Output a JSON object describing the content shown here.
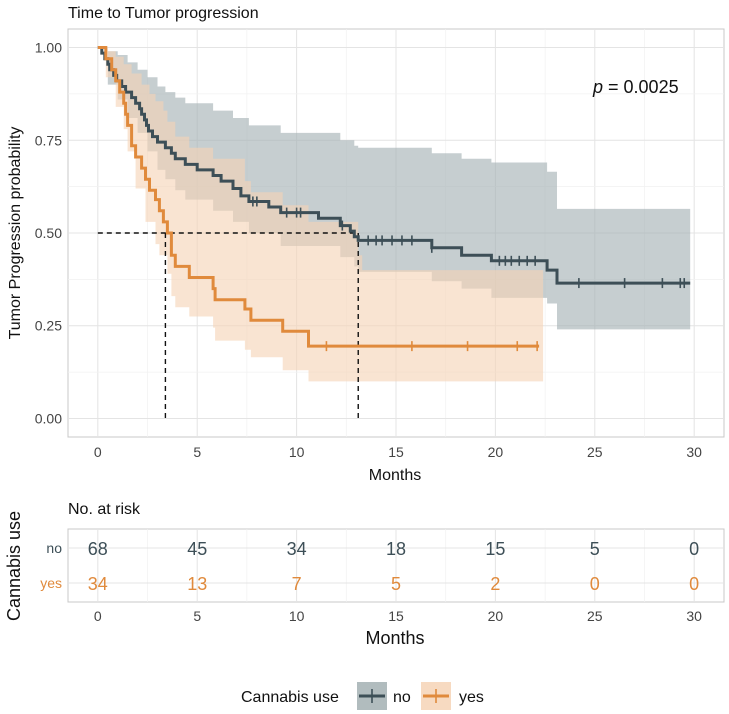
{
  "chart_data": [
    {
      "type": "line",
      "subtype": "kaplan-meier",
      "title": "Time to Tumor progression",
      "xlabel": "Months",
      "ylabel": "Tumor Progression probability",
      "xlim": [
        -1.5,
        31.5
      ],
      "ylim": [
        -0.05,
        1.05
      ],
      "x_ticks": [
        "0",
        "5",
        "10",
        "15",
        "20",
        "25",
        "30"
      ],
      "y_ticks": [
        "0.00",
        "0.25",
        "0.50",
        "0.75",
        "1.00"
      ],
      "grid": true,
      "annotation": {
        "p_label": "p",
        "p_value": " = 0.0025"
      },
      "median_lines": [
        3.4,
        13.1
      ],
      "series": [
        {
          "name": "no",
          "color": "#3d4f57",
          "ci_color": "#a3b0b3",
          "steps": [
            [
              0,
              1.0
            ],
            [
              0.2,
              0.985
            ],
            [
              0.35,
              0.97
            ],
            [
              0.5,
              0.955
            ],
            [
              0.6,
              0.94
            ],
            [
              0.8,
              0.925
            ],
            [
              0.95,
              0.91
            ],
            [
              1.2,
              0.895
            ],
            [
              1.4,
              0.88
            ],
            [
              1.7,
              0.865
            ],
            [
              1.9,
              0.85
            ],
            [
              2.1,
              0.835
            ],
            [
              2.2,
              0.82
            ],
            [
              2.35,
              0.805
            ],
            [
              2.45,
              0.79
            ],
            [
              2.55,
              0.775
            ],
            [
              2.75,
              0.76
            ],
            [
              3.0,
              0.745
            ],
            [
              3.4,
              0.73
            ],
            [
              3.7,
              0.715
            ],
            [
              3.9,
              0.7
            ],
            [
              4.4,
              0.685
            ],
            [
              5.0,
              0.67
            ],
            [
              5.8,
              0.655
            ],
            [
              6.2,
              0.64
            ],
            [
              6.8,
              0.62
            ],
            [
              7.2,
              0.6
            ],
            [
              7.6,
              0.585
            ],
            [
              8.6,
              0.57
            ],
            [
              9.2,
              0.555
            ],
            [
              11.1,
              0.54
            ],
            [
              12.2,
              0.52
            ],
            [
              12.7,
              0.505
            ],
            [
              12.9,
              0.49
            ],
            [
              13.1,
              0.48
            ],
            [
              16.8,
              0.46
            ],
            [
              18.3,
              0.44
            ],
            [
              19.8,
              0.425
            ],
            [
              22.6,
              0.4
            ],
            [
              23.1,
              0.365
            ],
            [
              29.8,
              0.365
            ]
          ],
          "ci_upper": [
            [
              0,
              1.0
            ],
            [
              0.5,
              0.99
            ],
            [
              1.0,
              0.98
            ],
            [
              1.5,
              0.96
            ],
            [
              2.0,
              0.94
            ],
            [
              2.5,
              0.92
            ],
            [
              3.0,
              0.895
            ],
            [
              3.4,
              0.88
            ],
            [
              3.9,
              0.865
            ],
            [
              4.4,
              0.85
            ],
            [
              5.8,
              0.83
            ],
            [
              6.8,
              0.81
            ],
            [
              7.6,
              0.79
            ],
            [
              9.2,
              0.77
            ],
            [
              12.2,
              0.75
            ],
            [
              12.9,
              0.735
            ],
            [
              13.1,
              0.73
            ],
            [
              16.8,
              0.715
            ],
            [
              18.3,
              0.7
            ],
            [
              19.8,
              0.69
            ],
            [
              22.6,
              0.665
            ],
            [
              23.1,
              0.565
            ],
            [
              29.8,
              0.565
            ]
          ],
          "ci_lower": [
            [
              0,
              1.0
            ],
            [
              0.5,
              0.9
            ],
            [
              1.0,
              0.86
            ],
            [
              1.5,
              0.81
            ],
            [
              2.0,
              0.77
            ],
            [
              2.5,
              0.72
            ],
            [
              3.0,
              0.67
            ],
            [
              3.4,
              0.645
            ],
            [
              3.9,
              0.615
            ],
            [
              4.4,
              0.59
            ],
            [
              5.8,
              0.56
            ],
            [
              6.8,
              0.53
            ],
            [
              7.6,
              0.5
            ],
            [
              9.2,
              0.465
            ],
            [
              12.2,
              0.435
            ],
            [
              12.9,
              0.41
            ],
            [
              13.1,
              0.395
            ],
            [
              16.8,
              0.37
            ],
            [
              18.3,
              0.35
            ],
            [
              19.8,
              0.325
            ],
            [
              22.6,
              0.31
            ],
            [
              23.1,
              0.24
            ],
            [
              29.8,
              0.24
            ]
          ],
          "censor_x": [
            7.8,
            8.0,
            9.5,
            10.0,
            10.2,
            12.3,
            13.6,
            14.0,
            14.3,
            14.8,
            15.3,
            15.8,
            16.8,
            20.2,
            20.5,
            20.8,
            21.2,
            21.6,
            22.0,
            24.2,
            26.5,
            28.4,
            29.3,
            29.5
          ]
        },
        {
          "name": "yes",
          "color": "#e08a3c",
          "ci_color": "#f6d3b6",
          "steps": [
            [
              0,
              1.0
            ],
            [
              0.4,
              0.97
            ],
            [
              0.7,
              0.94
            ],
            [
              0.9,
              0.91
            ],
            [
              1.1,
              0.88
            ],
            [
              1.3,
              0.85
            ],
            [
              1.4,
              0.82
            ],
            [
              1.5,
              0.79
            ],
            [
              1.7,
              0.735
            ],
            [
              1.9,
              0.705
            ],
            [
              2.2,
              0.675
            ],
            [
              2.4,
              0.645
            ],
            [
              2.6,
              0.615
            ],
            [
              2.9,
              0.59
            ],
            [
              3.1,
              0.56
            ],
            [
              3.3,
              0.53
            ],
            [
              3.5,
              0.5
            ],
            [
              3.7,
              0.44
            ],
            [
              3.9,
              0.41
            ],
            [
              4.6,
              0.38
            ],
            [
              5.8,
              0.35
            ],
            [
              5.9,
              0.32
            ],
            [
              7.4,
              0.295
            ],
            [
              7.7,
              0.265
            ],
            [
              9.3,
              0.235
            ],
            [
              10.6,
              0.195
            ],
            [
              22.2,
              0.195
            ]
          ],
          "ci_upper": [
            [
              0,
              1.0
            ],
            [
              0.5,
              0.99
            ],
            [
              0.9,
              0.975
            ],
            [
              1.3,
              0.955
            ],
            [
              1.7,
              0.93
            ],
            [
              2.2,
              0.9
            ],
            [
              2.6,
              0.875
            ],
            [
              2.9,
              0.855
            ],
            [
              3.3,
              0.83
            ],
            [
              3.5,
              0.8
            ],
            [
              3.9,
              0.76
            ],
            [
              4.6,
              0.73
            ],
            [
              5.8,
              0.7
            ],
            [
              7.4,
              0.64
            ],
            [
              7.7,
              0.61
            ],
            [
              9.3,
              0.575
            ],
            [
              10.6,
              0.53
            ],
            [
              13.1,
              0.44
            ],
            [
              13.3,
              0.4
            ],
            [
              22.4,
              0.4
            ]
          ],
          "ci_lower": [
            [
              0,
              1.0
            ],
            [
              0.4,
              0.92
            ],
            [
              0.9,
              0.84
            ],
            [
              1.3,
              0.78
            ],
            [
              1.5,
              0.72
            ],
            [
              1.9,
              0.62
            ],
            [
              2.4,
              0.53
            ],
            [
              2.9,
              0.47
            ],
            [
              3.1,
              0.44
            ],
            [
              3.5,
              0.39
            ],
            [
              3.7,
              0.33
            ],
            [
              3.9,
              0.3
            ],
            [
              4.6,
              0.275
            ],
            [
              5.8,
              0.245
            ],
            [
              5.9,
              0.21
            ],
            [
              7.4,
              0.185
            ],
            [
              7.7,
              0.165
            ],
            [
              9.3,
              0.13
            ],
            [
              10.6,
              0.1
            ],
            [
              22.4,
              0.1
            ]
          ],
          "censor_x": [
            11.5,
            15.8,
            18.6,
            21.1,
            22.1
          ]
        }
      ]
    },
    {
      "type": "table",
      "title": "No. at risk",
      "ylabel": "Cannabis use",
      "xlabel": "Months",
      "x_ticks": [
        "0",
        "5",
        "10",
        "15",
        "20",
        "25",
        "30"
      ],
      "rows": [
        {
          "name": "no",
          "color": "#3d4f57",
          "values": [
            "68",
            "45",
            "34",
            "18",
            "15",
            "5",
            "0"
          ]
        },
        {
          "name": "yes",
          "color": "#e08a3c",
          "values": [
            "34",
            "13",
            "7",
            "5",
            "2",
            "0",
            "0"
          ]
        }
      ]
    }
  ],
  "legend": {
    "title": "Cannabis use",
    "items": [
      {
        "label": "no",
        "color": "#3d4f57",
        "fill": "#a3b0b3"
      },
      {
        "label": "yes",
        "color": "#e08a3c",
        "fill": "#f6d3b6"
      }
    ]
  }
}
